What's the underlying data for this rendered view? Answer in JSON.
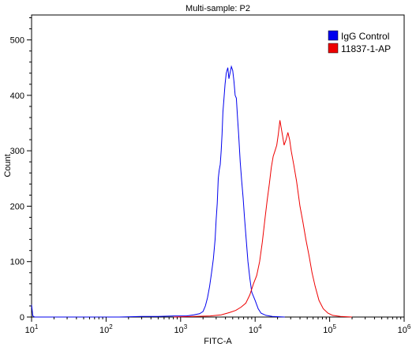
{
  "chart_data": {
    "type": "line",
    "title": "Multi-sample: P2",
    "xlabel": "FITC-A",
    "ylabel": "Count",
    "x_scale": "log10",
    "xlim": [
      10,
      1000000
    ],
    "ylim": [
      0,
      545
    ],
    "grid": false,
    "legend_position": "top-right",
    "x_ticks": [
      {
        "value": 10,
        "base": "10",
        "exp": "1"
      },
      {
        "value": 100,
        "base": "10",
        "exp": "2"
      },
      {
        "value": 1000,
        "base": "10",
        "exp": "3"
      },
      {
        "value": 10000,
        "base": "10",
        "exp": "4"
      },
      {
        "value": 100000,
        "base": "10",
        "exp": "5"
      },
      {
        "value": 1000000,
        "base": "10",
        "exp": "6"
      }
    ],
    "y_ticks": [
      0,
      100,
      200,
      300,
      400,
      500
    ],
    "series": [
      {
        "name": "IgG Control",
        "color": "#0000ee",
        "points": [
          [
            10,
            22
          ],
          [
            10.4,
            2
          ],
          [
            11,
            0
          ],
          [
            150,
            0
          ],
          [
            300,
            1
          ],
          [
            500,
            1
          ],
          [
            800,
            2
          ],
          [
            1200,
            2
          ],
          [
            1500,
            4
          ],
          [
            1800,
            6
          ],
          [
            2000,
            10
          ],
          [
            2150,
            20
          ],
          [
            2300,
            35
          ],
          [
            2450,
            55
          ],
          [
            2600,
            80
          ],
          [
            2750,
            105
          ],
          [
            2900,
            140
          ],
          [
            3000,
            175
          ],
          [
            3100,
            205
          ],
          [
            3200,
            250
          ],
          [
            3300,
            265
          ],
          [
            3400,
            275
          ],
          [
            3500,
            300
          ],
          [
            3600,
            330
          ],
          [
            3700,
            370
          ],
          [
            3800,
            390
          ],
          [
            3950,
            420
          ],
          [
            4100,
            440
          ],
          [
            4300,
            450
          ],
          [
            4450,
            430
          ],
          [
            4600,
            440
          ],
          [
            4800,
            452
          ],
          [
            5000,
            445
          ],
          [
            5200,
            425
          ],
          [
            5400,
            400
          ],
          [
            5600,
            395
          ],
          [
            5800,
            360
          ],
          [
            6000,
            330
          ],
          [
            6300,
            280
          ],
          [
            6600,
            245
          ],
          [
            6900,
            215
          ],
          [
            7200,
            180
          ],
          [
            7600,
            140
          ],
          [
            8000,
            100
          ],
          [
            8500,
            70
          ],
          [
            9000,
            45
          ],
          [
            10000,
            30
          ],
          [
            11000,
            15
          ],
          [
            12000,
            7
          ],
          [
            14000,
            3
          ],
          [
            17000,
            1
          ],
          [
            25000,
            0
          ]
        ]
      },
      {
        "name": "11837-1-AP",
        "color": "#ee0000",
        "points": [
          [
            800,
            0
          ],
          [
            1500,
            1
          ],
          [
            2500,
            2
          ],
          [
            3500,
            4
          ],
          [
            4500,
            8
          ],
          [
            5500,
            12
          ],
          [
            6500,
            18
          ],
          [
            7500,
            25
          ],
          [
            8500,
            40
          ],
          [
            9500,
            60
          ],
          [
            10500,
            75
          ],
          [
            11500,
            100
          ],
          [
            12500,
            135
          ],
          [
            13500,
            175
          ],
          [
            14500,
            210
          ],
          [
            15500,
            240
          ],
          [
            16500,
            270
          ],
          [
            17500,
            290
          ],
          [
            18500,
            300
          ],
          [
            19500,
            310
          ],
          [
            20500,
            330
          ],
          [
            21500,
            355
          ],
          [
            22500,
            340
          ],
          [
            23500,
            325
          ],
          [
            24500,
            310
          ],
          [
            26000,
            320
          ],
          [
            27500,
            333
          ],
          [
            29000,
            320
          ],
          [
            30500,
            300
          ],
          [
            33000,
            275
          ],
          [
            36000,
            245
          ],
          [
            40000,
            200
          ],
          [
            44000,
            170
          ],
          [
            48000,
            140
          ],
          [
            53000,
            110
          ],
          [
            58000,
            80
          ],
          [
            64000,
            55
          ],
          [
            72000,
            30
          ],
          [
            82000,
            15
          ],
          [
            95000,
            7
          ],
          [
            110000,
            3
          ],
          [
            140000,
            1
          ],
          [
            200000,
            0
          ]
        ]
      }
    ]
  }
}
